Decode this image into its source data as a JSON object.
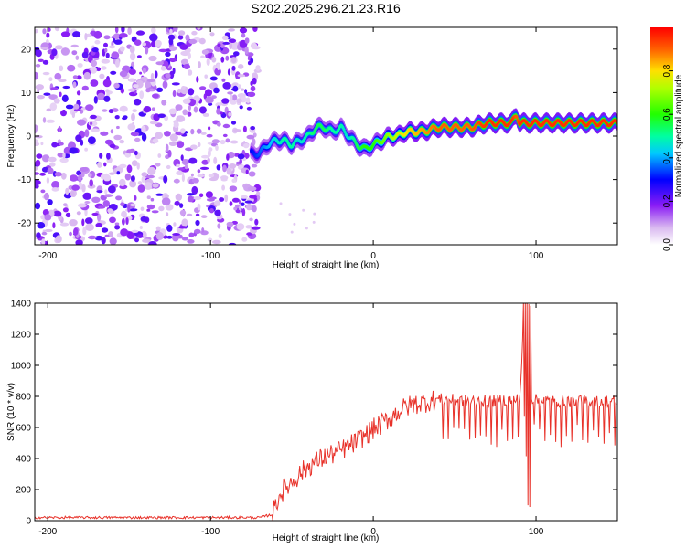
{
  "title": "S202.2025.296.21.23.R16",
  "chart_data": [
    {
      "type": "heatmap",
      "xlabel": "Height of straight line (km)",
      "ylabel": "Frequency (Hz)",
      "xlim": [
        -208,
        150
      ],
      "ylim": [
        -25,
        25
      ],
      "xticks": [
        -200,
        -100,
        0,
        100
      ],
      "yticks": [
        -20,
        -10,
        0,
        10,
        20
      ],
      "noise_region": {
        "x_from": -208,
        "x_to": -75,
        "y_from": -25,
        "y_to": 25
      },
      "ridge": {
        "x": [
          -75,
          -70,
          -65,
          -60,
          -55,
          -50,
          -45,
          -40,
          -35,
          -30,
          -25,
          -20,
          -15,
          -10,
          -5,
          0,
          5,
          10,
          15,
          20,
          30,
          40,
          50,
          60,
          70,
          80,
          85,
          88,
          90,
          95,
          100,
          110,
          120,
          130,
          140,
          150
        ],
        "y": [
          -4,
          -4,
          -2,
          -1,
          -1,
          -2,
          -1,
          0,
          2,
          2,
          1,
          2,
          0,
          -2,
          -3,
          -2,
          -1,
          0,
          0,
          1,
          1,
          2,
          2,
          2,
          3,
          3,
          3,
          5,
          3,
          3,
          3,
          3,
          3,
          3,
          3,
          3
        ],
        "amplitude": [
          0.3,
          0.35,
          0.4,
          0.45,
          0.5,
          0.5,
          0.45,
          0.5,
          0.55,
          0.55,
          0.5,
          0.5,
          0.45,
          0.55,
          0.6,
          0.6,
          0.65,
          0.7,
          0.75,
          0.8,
          0.85,
          0.9,
          0.9,
          0.9,
          0.95,
          0.95,
          0.95,
          0.9,
          0.95,
          0.95,
          0.95,
          0.95,
          0.95,
          0.95,
          0.95,
          0.95
        ]
      },
      "colorbar": {
        "label": "Normalized spectral amplitude",
        "range": [
          0.0,
          1.0
        ],
        "ticks": [
          "0.0",
          "0.2",
          "0.4",
          "0.6",
          "0.8"
        ]
      }
    },
    {
      "type": "line",
      "xlabel": "Height of straight line (km)",
      "ylabel": "SNR (10 * v/v)",
      "xlim": [
        -208,
        150
      ],
      "ylim": [
        0,
        1400
      ],
      "xticks": [
        -200,
        -100,
        0,
        100
      ],
      "yticks": [
        0,
        200,
        400,
        600,
        800,
        1000,
        1200,
        1400
      ],
      "color": "#e8322a",
      "series": [
        {
          "name": "SNR",
          "x": [
            -208,
            -180,
            -150,
            -120,
            -90,
            -70,
            -62,
            -58,
            -54,
            -50,
            -45,
            -40,
            -35,
            -30,
            -25,
            -20,
            -15,
            -10,
            -5,
            0,
            5,
            10,
            15,
            20,
            25,
            30,
            35,
            40,
            45,
            50,
            60,
            70,
            80,
            90,
            93,
            95,
            97,
            100,
            110,
            120,
            130,
            140,
            150
          ],
          "y": [
            20,
            20,
            20,
            20,
            20,
            20,
            40,
            160,
            210,
            250,
            300,
            350,
            380,
            410,
            430,
            450,
            480,
            510,
            550,
            590,
            620,
            660,
            700,
            730,
            750,
            760,
            770,
            780,
            780,
            775,
            770,
            770,
            775,
            780,
            1400,
            800,
            780,
            775,
            770,
            770,
            770,
            770,
            770
          ]
        }
      ]
    }
  ]
}
